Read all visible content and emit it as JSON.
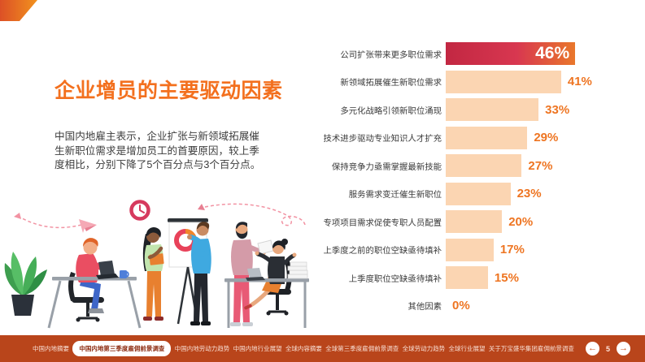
{
  "slide": {
    "title": "企业增员的主要驱动因素",
    "description": "中国内地雇主表示，企业扩张与新领域拓展催生新职位需求是增加员工的首要原因，较上季度相比，分别下降了5个百分点与3个百分点。"
  },
  "chart_data": {
    "type": "bar",
    "orientation": "horizontal",
    "title": "企业增员的主要驱动因素",
    "unit": "%",
    "categories": [
      "公司扩张带来更多职位需求",
      "新领域拓展催生新职位需求",
      "多元化战略引领新职位涌现",
      "技术进步驱动专业知识人才扩充",
      "保持竞争力亟需掌握最新技能",
      "服务需求变迁催生新职位",
      "专项项目需求促使专职人员配置",
      "上季度之前的职位空缺亟待填补",
      "上季度职位空缺亟待填补",
      "其他因素"
    ],
    "values": [
      46,
      41,
      33,
      29,
      27,
      23,
      20,
      17,
      15,
      0
    ],
    "value_labels": [
      "46%",
      "41%",
      "33%",
      "29%",
      "27%",
      "23%",
      "20%",
      "17%",
      "15%",
      "0%"
    ],
    "highlight_index": 0,
    "xlim": [
      0,
      50
    ],
    "grid": false,
    "legend": false,
    "colors": {
      "bar_fill": "#FBD5B2",
      "highlight_gradient_start": "#C22742",
      "highlight_gradient_end": "#E9772B",
      "value_label": "#EE7522",
      "highlight_value_label": "#FFFFFF",
      "category_label": "#3A3A3A"
    }
  },
  "nav": {
    "tabs": [
      {
        "label": "中国内地摘要",
        "active": false
      },
      {
        "label": "中国内地第三季度雇佣前景调查",
        "active": true
      },
      {
        "label": "中国内地劳动力趋势",
        "active": false
      },
      {
        "label": "中国内地行业展望",
        "active": false
      },
      {
        "label": "全球内容摘要",
        "active": false
      },
      {
        "label": "全球第三季度雇佣前景调查",
        "active": false
      },
      {
        "label": "全球劳动力趋势",
        "active": false
      },
      {
        "label": "全球行业展望",
        "active": false
      },
      {
        "label": "关于万宝盛华集团雇佣前景调查",
        "active": false
      }
    ],
    "page_number": "5",
    "prev_icon": "←",
    "next_icon": "→",
    "colors": {
      "background": "#B9451B",
      "tab_text": "#F9E0D5",
      "active_tab_bg": "#FFFFFF",
      "active_tab_text": "#8C2B10",
      "arrow": "#C8511F"
    }
  },
  "decor": {
    "corner_gradient_start": "#DC5026",
    "corner_gradient_end": "#F2921E",
    "title_color": "#F3701E"
  },
  "illustration": {
    "alt": "办公室团队插画",
    "elements": [
      "potted-plant",
      "clock",
      "paper-plane",
      "dashed-swirl",
      "person-at-laptop",
      "woman-with-folder",
      "presenter-at-flipchart",
      "man-with-papers",
      "woman-at-desk"
    ]
  }
}
